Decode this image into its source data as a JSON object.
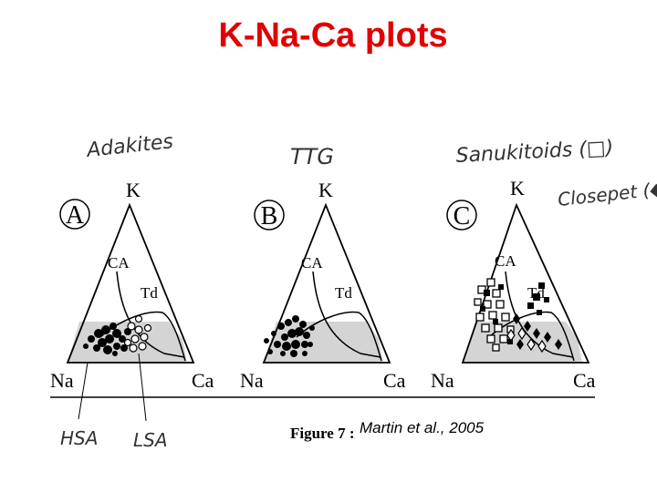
{
  "title": "K-Na-Ca plots",
  "handwritten": {
    "adakites": "Adakites",
    "ttg": "TTG",
    "sanukitoids": "Sanukitoids (□)",
    "closepet": "Closepet (◆",
    "hsa": "HSA",
    "lsa": "LSA"
  },
  "panels": [
    {
      "letter": "A",
      "apex": "K",
      "left": "Na",
      "right": "Ca",
      "ca": "CA",
      "td": "Td"
    },
    {
      "letter": "B",
      "apex": "K",
      "left": "Na",
      "right": "Ca",
      "ca": "CA",
      "td": "Td"
    },
    {
      "letter": "C",
      "apex": "K",
      "left": "Na",
      "right": "Ca",
      "ca": "CA",
      "td": "Td"
    }
  ],
  "figure_label": "Figure 7 :",
  "credit": "Martin et al., 2005",
  "colors": {
    "title": "#e00000",
    "field": "#d4d4d4",
    "ink": "#000000"
  }
}
